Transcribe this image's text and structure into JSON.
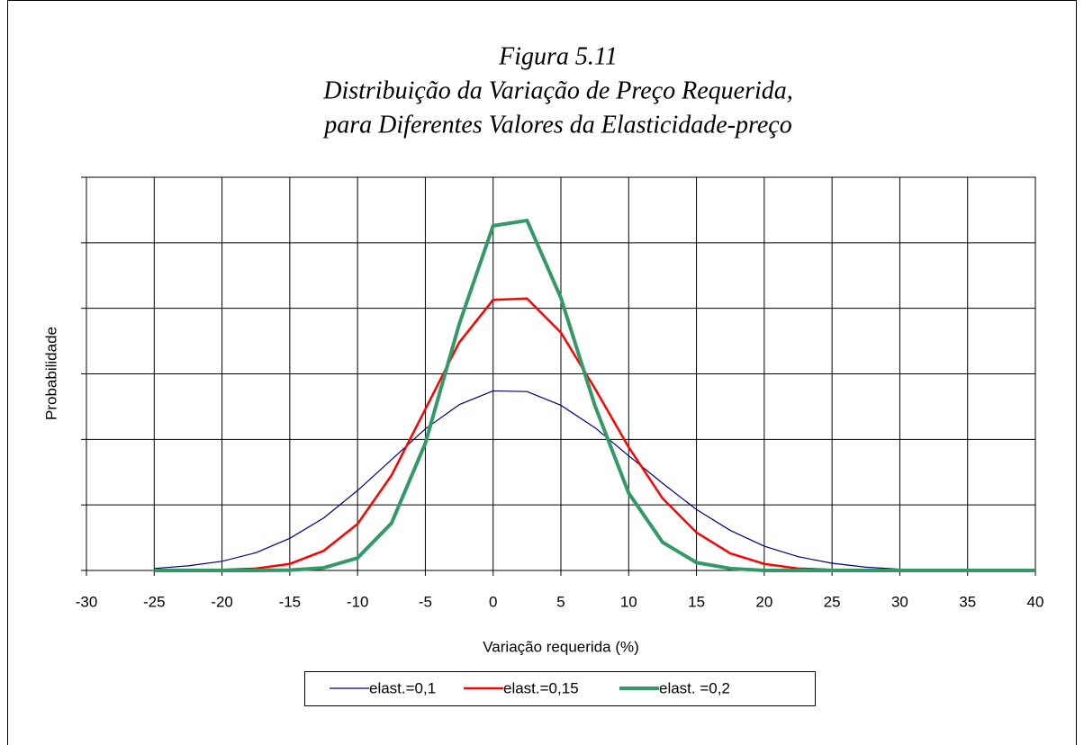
{
  "chart_data": {
    "type": "line",
    "title": [
      "Figura 5.11",
      "Distribuição da Variação de Preço Requerida,",
      "para Diferentes Valores da Elasticidade-preço"
    ],
    "xlabel": "Variação requerida (%)",
    "ylabel": "Probabilidade",
    "x": [
      -25,
      -22.5,
      -20,
      -17.5,
      -15,
      -12.5,
      -10,
      -7.5,
      -5,
      -2.5,
      0,
      2.5,
      5,
      7.5,
      10,
      12.5,
      15,
      17.5,
      20,
      22.5,
      25,
      27.5,
      30,
      32.5,
      35,
      37.5,
      40
    ],
    "series": [
      {
        "name": "elast.=0,1",
        "color": "#000080",
        "width": 1.2,
        "values": [
          0.03,
          0.07,
          0.14,
          0.27,
          0.49,
          0.8,
          1.22,
          1.69,
          2.16,
          2.53,
          2.74,
          2.73,
          2.52,
          2.18,
          1.75,
          1.33,
          0.93,
          0.61,
          0.37,
          0.21,
          0.11,
          0.05,
          0.02,
          0.01,
          0,
          0,
          0
        ]
      },
      {
        "name": "elast.=0,15",
        "color": "#ff0000",
        "width": 2.5,
        "values": [
          0,
          0,
          0.01,
          0.03,
          0.1,
          0.3,
          0.71,
          1.45,
          2.46,
          3.48,
          4.13,
          4.15,
          3.63,
          2.78,
          1.88,
          1.1,
          0.58,
          0.26,
          0.1,
          0.03,
          0.01,
          0,
          0,
          0,
          0,
          0,
          0
        ]
      },
      {
        "name": "elast. =0,2",
        "color": "#339966",
        "width": 4,
        "values": [
          0,
          0,
          0,
          0,
          0.005,
          0.04,
          0.19,
          0.72,
          1.94,
          3.76,
          5.26,
          5.34,
          4.16,
          2.52,
          1.18,
          0.43,
          0.12,
          0.03,
          0,
          0,
          0,
          0,
          0,
          0,
          0,
          0,
          0
        ]
      }
    ],
    "xlim": [
      -30,
      40
    ],
    "xticks": [
      -30,
      -25,
      -20,
      -15,
      -10,
      -5,
      0,
      5,
      10,
      15,
      20,
      25,
      30,
      35,
      40
    ],
    "ylim": [
      0,
      6
    ],
    "yticks": [
      0,
      1,
      2,
      3,
      4,
      5,
      6
    ],
    "ytick_labels": false,
    "grid": true,
    "legend": "bottom"
  }
}
